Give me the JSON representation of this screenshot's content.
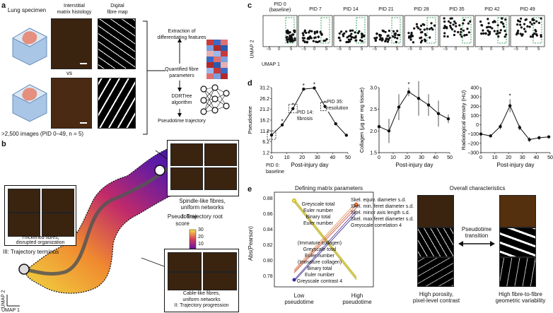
{
  "panels": {
    "a": "a",
    "b": "b",
    "c": "c",
    "d": "d",
    "e": "e"
  },
  "a": {
    "col_specimen": "Lung specimen",
    "col_histology": "Interstitial\nmatrix histology",
    "col_fibre_map": "Digital\nfibre map",
    "vs": "vs",
    "images_note": ">2,500 images (PID 0–49, n = 5)",
    "step_extraction": "Extraction of\ndifferentiating features",
    "step_quantified": "Quantified fibre\nparameters",
    "step_ddrtree": "DDRTree\nalgorithm",
    "step_pseudotime": "Pseudotime trajectory"
  },
  "b": {
    "root_caption": "Spindle-like fibres,\nuniform networks",
    "root_label": "I: Trajectory root",
    "terminus_caption": "Thickened fibres,\ndisrupted organization",
    "terminus_label": "III: Trajectory terminus",
    "progression_caption": "Cable-like fibres,\nuniform networks",
    "progression_label": "II: Trajectory progression",
    "colorbar_title": "Pseudotime\nscore",
    "colorbar_ticks": [
      "30",
      "20",
      "10",
      "0"
    ],
    "umap_x": "UMAP 1",
    "umap_y": "UMAP 2"
  },
  "c": {
    "titles": [
      "PID 0\n(baseline)",
      "PID 7",
      "PID 14",
      "PID 21",
      "PID 28",
      "PID 35",
      "PID 42",
      "PID 49"
    ],
    "ticks": [
      "−5",
      "0",
      "5"
    ],
    "umap_x": "UMAP 1",
    "umap_y": "UMAP 2"
  },
  "e": {
    "left_title": "Defining matrix parameters",
    "ylabel": "Abs(Pearson)",
    "yticks": [
      "0.88",
      "0.86",
      "0.84",
      "0.82",
      "0.80",
      "0.78"
    ],
    "x_low": "Low\npseudotime",
    "x_high": "High\npseudotime",
    "high_labels": "Skel. equiv. diameter s.d.\nSkel. min. feret diameter s.d.\nSkel. minor axis length s.d.\nSkel. max feret diameter s.d.\nGreyscale correlation 4",
    "upper_low_labels": "Greyscale total\nEuler number\nBinary total\nEuler number",
    "lower_low_labels": "(Immature collagen)\nGreyscale total\nEuler number\n(Immature collagen)\nBinary total\nEuler number\nGreyscale contrast 4",
    "right_title": "Overall characteristics",
    "transition": "Pseudotime\ntransition",
    "low_char": "High porosity,\npixel-level contrast",
    "high_char": "High fibre-to-fibre\ngeometric variability"
  },
  "chart_data": [
    {
      "type": "line",
      "title": "Pseudotime",
      "xlabel": "Post-injury day",
      "ylabel": "Pseudotime",
      "x": [
        0,
        7,
        14,
        21,
        28,
        35,
        42,
        49
      ],
      "y": [
        9.3,
        14.0,
        21.5,
        30.5,
        31.0,
        22.5,
        14.5,
        9.2
      ],
      "xticks": [
        "0",
        "10",
        "20",
        "30",
        "40",
        "50"
      ],
      "yticks": [
        "31.2",
        "26.2",
        "21.2",
        "16.2",
        "11.2",
        "6.2",
        "1.2"
      ],
      "ylim": [
        1.2,
        31.2
      ],
      "significant_x": [
        7,
        14,
        21,
        28,
        35
      ],
      "annotations": [
        {
          "x": 0,
          "text": "PID 0:\nbaseline"
        },
        {
          "x": 14,
          "text": "PID 14:\nfibrosis"
        },
        {
          "x": 35,
          "text": "PID 35:\nresolution"
        }
      ]
    },
    {
      "type": "line",
      "xlabel": "Post-injury day",
      "ylabel": "Collagen (μg per mg tissue)",
      "x": [
        0,
        7,
        14,
        21,
        28,
        35,
        42,
        49
      ],
      "y": [
        2.1,
        2.0,
        2.55,
        2.9,
        2.75,
        2.6,
        2.4,
        2.28
      ],
      "err": [
        0.05,
        0.28,
        0.3,
        0.1,
        0.4,
        0.25,
        0.3,
        0.1
      ],
      "xticks": [
        "0",
        "10",
        "20",
        "30",
        "40",
        "50"
      ],
      "yticks": [
        "3.0",
        "2.5",
        "2.0",
        "1.5"
      ],
      "ylim": [
        1.5,
        3.0
      ],
      "significant_x": [
        21
      ]
    },
    {
      "type": "line",
      "xlabel": "Post-injury day",
      "ylabel": "Radiological density (HU)",
      "x": [
        0,
        7,
        14,
        21,
        28,
        35,
        42,
        49
      ],
      "y": [
        -100,
        -120,
        -20,
        205,
        -30,
        -160,
        -140,
        -130
      ],
      "err": [
        20,
        15,
        30,
        70,
        30,
        25,
        20,
        15
      ],
      "xticks": [
        "0",
        "10",
        "20",
        "30",
        "40",
        "50"
      ],
      "yticks": [
        "400",
        "300",
        "200",
        "100",
        "0",
        "−100",
        "−200",
        "−300"
      ],
      "ylim": [
        -300,
        400
      ],
      "significant_x": [
        21
      ]
    }
  ]
}
